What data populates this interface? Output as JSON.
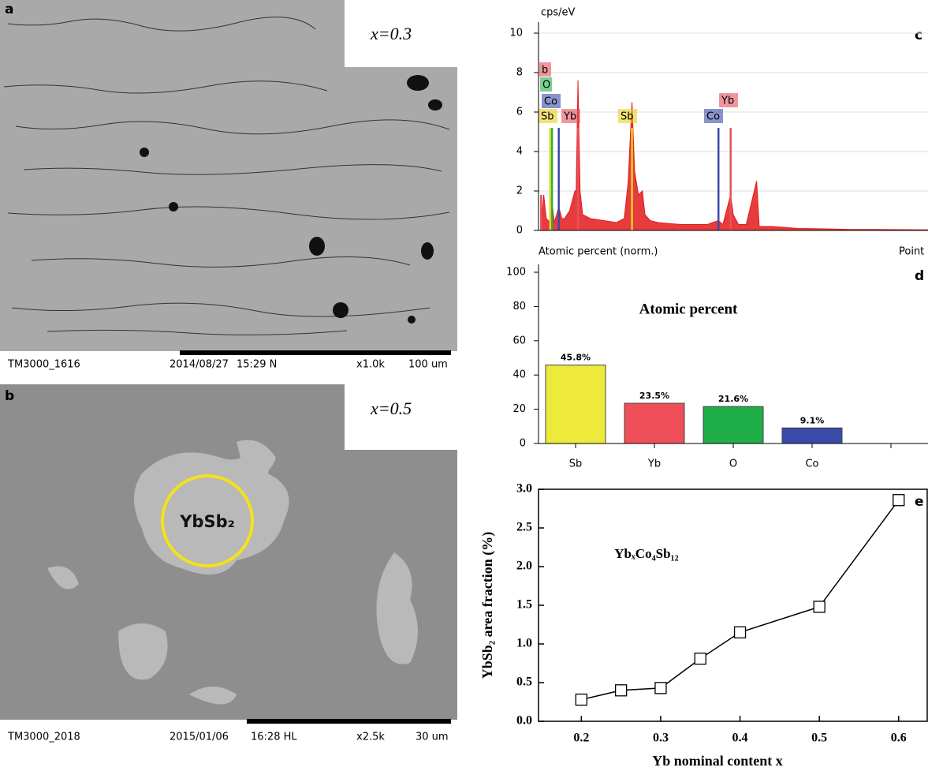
{
  "panels": [
    {
      "letter": "a",
      "sample": "x=0.3",
      "caption": [
        "TM3000_1616",
        "2014/08/27",
        "15:29 N",
        "x1.0k",
        "100 um"
      ]
    },
    {
      "letter": "b",
      "sample": "x=0.5",
      "phase": "YbSb₂",
      "caption": [
        "TM3000_2018",
        "2015/01/06",
        "16:28 HL",
        "x2.5k",
        "30 um"
      ]
    }
  ],
  "chart_data": [
    {
      "type": "line",
      "panel": "c",
      "ylabel": "cps/eV",
      "xlim": [
        0,
        15
      ],
      "ylim": [
        0,
        10.4
      ],
      "yticks": [
        0,
        2,
        4,
        6,
        8,
        10
      ],
      "grid": true,
      "series": [
        {
          "color": "#e31a1c",
          "x": [
            0.1,
            0.2,
            0.3,
            0.45,
            0.52,
            0.6,
            0.7,
            0.78,
            0.9,
            1.0,
            1.2,
            1.4,
            1.45,
            1.52,
            1.6,
            1.7,
            2.0,
            2.5,
            3.0,
            3.3,
            3.45,
            3.6,
            3.7,
            3.85,
            4.0,
            4.1,
            4.3,
            4.6,
            5.0,
            5.5,
            6.0,
            6.5,
            6.93,
            7.1,
            7.4,
            7.5,
            7.7,
            8.0,
            8.4,
            8.5,
            9.0,
            10,
            11,
            12,
            13,
            14,
            15
          ],
          "values": [
            0.2,
            1.8,
            0.6,
            0.4,
            1.5,
            0.4,
            0.8,
            1.2,
            0.6,
            0.6,
            1.0,
            2.0,
            2.0,
            7.6,
            2.0,
            0.8,
            0.6,
            0.5,
            0.4,
            0.6,
            2.4,
            6.5,
            3.0,
            1.8,
            2.0,
            0.8,
            0.5,
            0.4,
            0.35,
            0.3,
            0.3,
            0.3,
            0.5,
            0.3,
            1.8,
            0.8,
            0.3,
            0.3,
            2.5,
            0.2,
            0.2,
            0.1,
            0.08,
            0.05,
            0.05,
            0.04,
            0.03
          ]
        }
      ],
      "markers": [
        {
          "label": "b",
          "x": 0.1,
          "height": 1.8,
          "color": "#e8505a"
        },
        {
          "label": "O",
          "x": 0.52,
          "height": 5.2,
          "color": "#22b04a"
        },
        {
          "label": "Co",
          "x": 0.78,
          "height": 5.2,
          "color": "#3a4aa8"
        },
        {
          "label": "Sb",
          "x": 0.45,
          "height": 5.2,
          "color": "#e6d21e"
        },
        {
          "label": "Yb",
          "x": 1.52,
          "height": 5.2,
          "color": "#e8505a"
        },
        {
          "label": "Sb",
          "x": 3.6,
          "height": 5.2,
          "color": "#e6d21e"
        },
        {
          "label": "Co",
          "x": 6.93,
          "height": 5.2,
          "color": "#3a4aa8"
        },
        {
          "label": "Yb",
          "x": 7.4,
          "height": 5.2,
          "color": "#e8505a"
        }
      ]
    },
    {
      "type": "bar",
      "panel": "d",
      "header": "Atomic percent (norm.)",
      "corner_label": "Point",
      "title": "Atomic percent",
      "categories": [
        "Sb",
        "Yb",
        "O",
        "Co",
        null
      ],
      "values": [
        45.8,
        23.5,
        21.6,
        9.1,
        null
      ],
      "value_labels": [
        "45.8%",
        "23.5%",
        "21.6%",
        "9.1%",
        null
      ],
      "colors": [
        "#eeea3c",
        "#ef4f58",
        "#1fae48",
        "#3a4aa8",
        null
      ],
      "ylim": [
        0,
        108
      ],
      "yticks": [
        0,
        20,
        40,
        60,
        80,
        100
      ]
    },
    {
      "type": "scatter-line",
      "panel": "e",
      "annotation": "YbₓCo₄Sb₁₂",
      "xlabel": "Yb nominal content x",
      "ylabel": "YbSb₂ area fraction (%)",
      "x": [
        0.2,
        0.25,
        0.3,
        0.35,
        0.4,
        0.5,
        0.6
      ],
      "values": [
        0.28,
        0.4,
        0.43,
        0.81,
        1.15,
        1.48,
        2.86
      ],
      "xlim": [
        0.146,
        0.637
      ],
      "ylim": [
        0,
        3.0
      ],
      "xticks": [
        0.2,
        0.3,
        0.4,
        0.5,
        0.6
      ],
      "yticks": [
        {
          "value": 0,
          "label": "0.0"
        },
        {
          "value": 0.5,
          "label": "0.5"
        },
        {
          "value": 1,
          "label": "1.0"
        },
        {
          "value": 1.5,
          "label": "1.5"
        },
        {
          "value": 2,
          "label": "2.0"
        },
        {
          "value": 2.5,
          "label": "2.5"
        },
        {
          "value": 3,
          "label": "3.0"
        }
      ]
    }
  ]
}
